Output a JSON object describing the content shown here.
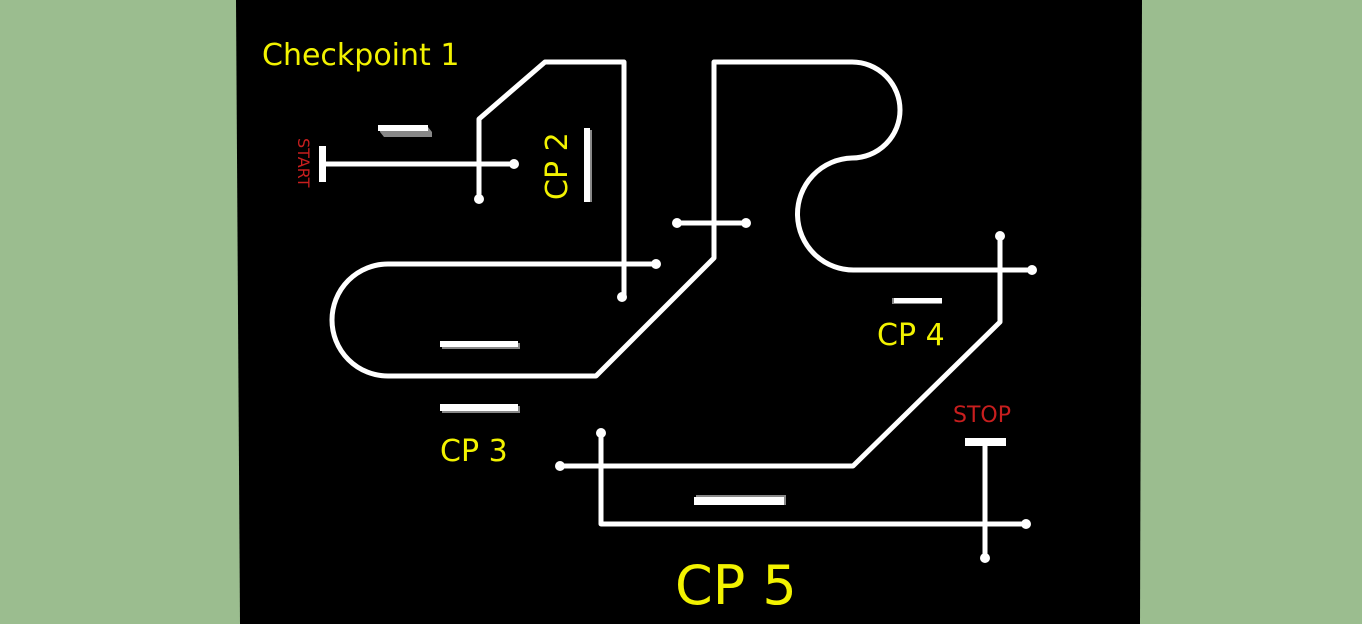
{
  "colors": {
    "background": "#9bbd8f",
    "board": "#000000",
    "track": "#ffffff",
    "checkpoint_label": "#f2f200",
    "start_stop_label": "#c81e1e",
    "bar_shadow": "#888888"
  },
  "labels": {
    "checkpoint1": "Checkpoint 1",
    "cp2": "CP 2",
    "cp3": "CP 3",
    "cp4": "CP 4",
    "cp5": "CP 5",
    "start": "START",
    "stop": "STOP"
  }
}
